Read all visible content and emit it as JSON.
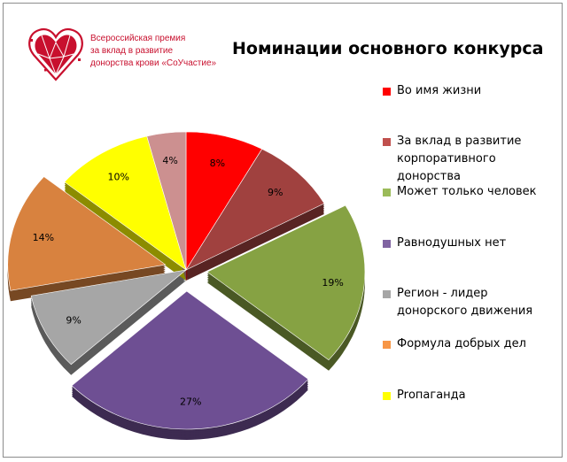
{
  "logo": {
    "icon": "heart-mosaic-logo",
    "lines": [
      "Всероссийская премия",
      "за вклад в развитие",
      "донорства крови «СоУчастие»"
    ],
    "color": "#c8102e"
  },
  "chart_data": {
    "type": "pie",
    "title": "Номинации основного конкурса",
    "legend_position": "right",
    "series": [
      {
        "categories": [
          "Во имя жизни",
          "За вклад в развитие корпоративного донорства",
          "Может только человек",
          "Равнодушных нет",
          "Регион - лидер донорского движения",
          "Формула добрых дел",
          "Prопаганда",
          ""
        ],
        "values": [
          8,
          9,
          19,
          27,
          9,
          14,
          10,
          4
        ],
        "value_labels": [
          "8%",
          "9%",
          "19%",
          "27%",
          "9%",
          "14%",
          "10%",
          "4%"
        ],
        "exploded": [
          false,
          false,
          true,
          true,
          false,
          true,
          false,
          false
        ],
        "colors": [
          "#ff0000",
          "#a0413f",
          "#86a243",
          "#6e4f93",
          "#a6a6a6",
          "#d8823f",
          "#ffff00",
          "#cc9090"
        ]
      }
    ],
    "legend": [
      {
        "label": "Во имя жизни",
        "color": "#ff0000"
      },
      {
        "label": "За вклад в развитие корпоративного донорства",
        "color": "#c0504d"
      },
      {
        "label": "Может только человек",
        "color": "#9bbb59"
      },
      {
        "label": "Равнодушных нет",
        "color": "#8064a2"
      },
      {
        "label": "Регион - лидер донорского движения",
        "color": "#a6a6a6"
      },
      {
        "label": "Формула добрых дел",
        "color": "#f79646"
      },
      {
        "label": "Prопаганда",
        "color": "#ffff00"
      }
    ]
  }
}
